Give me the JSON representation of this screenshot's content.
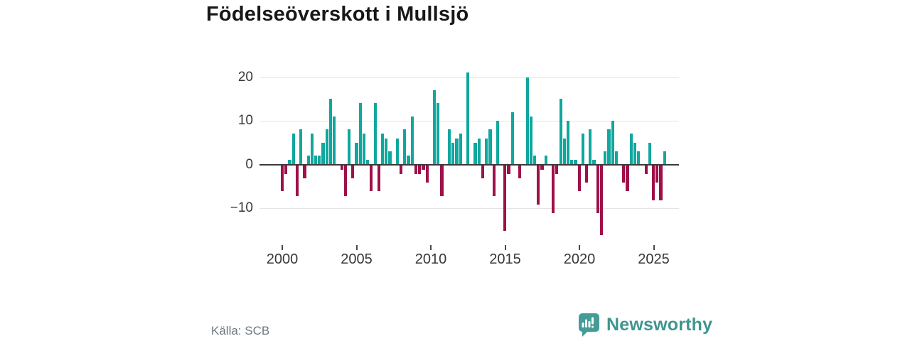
{
  "title": "Födelseöverskott i Mullsjö",
  "source": "Källa: SCB",
  "logo": {
    "text": "Newsworthy",
    "icon": "bar-chart-speech-bubble",
    "color": "#459c96"
  },
  "chart_data": {
    "type": "bar",
    "title": "Födelseöverskott i Mullsjö",
    "frequency": "quarterly",
    "start_period": "2000 Q1",
    "end_period": "2025 Q4",
    "values": [
      -6,
      -2,
      1,
      7,
      -7,
      8,
      -3,
      2,
      7,
      2,
      2,
      5,
      8,
      15,
      11,
      0,
      -1,
      -7,
      8,
      -3,
      5,
      14,
      7,
      1,
      -6,
      14,
      -6,
      7,
      6,
      3,
      0,
      6,
      -2,
      8,
      2,
      11,
      -2,
      -2,
      -1,
      -4,
      0,
      17,
      14,
      -7,
      0,
      8,
      5,
      6,
      7,
      0,
      21,
      0,
      5,
      6,
      -3,
      6,
      8,
      -7,
      10,
      0,
      -15,
      -2,
      12,
      0,
      -3,
      0,
      20,
      11,
      2,
      -9,
      -1,
      2,
      0,
      -11,
      -2,
      15,
      6,
      10,
      1,
      1,
      -6,
      7,
      -4,
      8,
      1,
      -11,
      -16,
      3,
      8,
      10,
      3,
      0,
      -4,
      -6,
      7,
      5,
      3,
      0,
      -2,
      5,
      -8,
      -4,
      -8,
      3
    ],
    "y_ticks": [
      20,
      10,
      0,
      -10
    ],
    "x_ticks": [
      2000,
      2005,
      2010,
      2015,
      2020,
      2025
    ],
    "ylim": [
      -17,
      23
    ],
    "grid": true,
    "legend": "none",
    "colors": {
      "positive": "#0fa79e",
      "negative": "#9e1148",
      "axis": "#3b3b3b",
      "gridline": "#e4e4e4"
    }
  }
}
